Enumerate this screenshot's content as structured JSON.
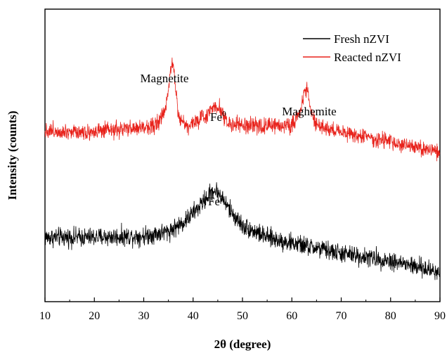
{
  "chart_data": {
    "type": "line",
    "xlabel": "2θ (degree)",
    "ylabel": "Intensity (counts)",
    "xlim": [
      10,
      90
    ],
    "xticks": [
      "10",
      "20",
      "30",
      "40",
      "50",
      "60",
      "70",
      "80",
      "90"
    ],
    "ylim": [
      0,
      100
    ],
    "grid": false,
    "legend": {
      "placement": "top-right"
    },
    "series": [
      {
        "name": "Fresh nZVI",
        "color": "#000000",
        "x": [
          10,
          20,
          30,
          35,
          38,
          41,
          43,
          44,
          45,
          46,
          48,
          50,
          55,
          60,
          70,
          80,
          90
        ],
        "y": [
          22,
          22,
          22.5,
          24,
          27,
          32,
          36,
          38,
          37.5,
          35,
          30,
          26,
          22,
          20,
          16.5,
          14,
          10
        ]
      },
      {
        "name": "Reacted nZVI",
        "color": "#e8221b",
        "x": [
          10,
          20,
          30,
          33,
          34.5,
          35.3,
          35.8,
          36.3,
          37,
          38.5,
          40,
          43,
          44.5,
          45.5,
          47,
          50,
          55,
          60,
          61.5,
          62.5,
          63,
          63.8,
          65,
          70,
          80,
          90
        ],
        "y": [
          58.5,
          58,
          59.5,
          61,
          66,
          78,
          83,
          76,
          64,
          60,
          61,
          64,
          67.5,
          66,
          61,
          60,
          60,
          60.5,
          64,
          72,
          73,
          66,
          60,
          58,
          54.5,
          51
        ]
      }
    ],
    "annotations": [
      {
        "text": "Magnetite",
        "x": 35.5,
        "series": "Reacted nZVI"
      },
      {
        "text": "Fe",
        "superscript": "0",
        "x": 44.8,
        "series": "Reacted nZVI"
      },
      {
        "text": "Maghemite",
        "x": 62.8,
        "series": "Reacted nZVI"
      },
      {
        "text": "Fe",
        "superscript": "0",
        "x": 44.5,
        "series": "Fresh nZVI"
      }
    ]
  }
}
